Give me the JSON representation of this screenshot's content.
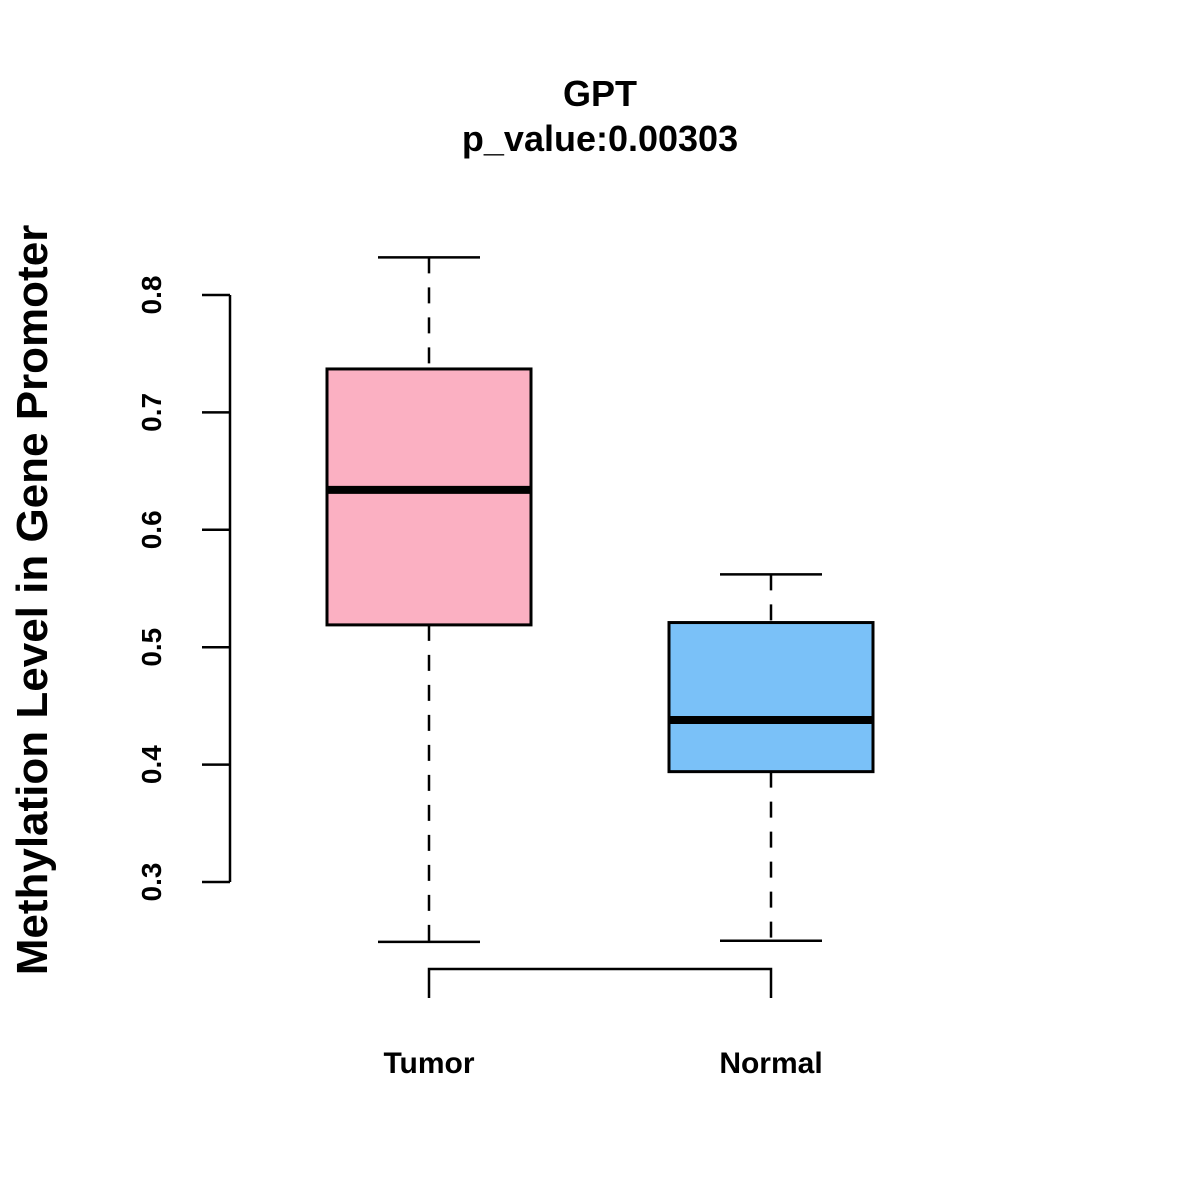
{
  "chart_data": {
    "type": "boxplot",
    "title": "GPT",
    "subtitle": "p_value:0.00303",
    "xlabel": "",
    "ylabel": "Methylation Level in Gene Promoter",
    "yticks": [
      "0.3",
      "0.4",
      "0.5",
      "0.6",
      "0.7",
      "0.8"
    ],
    "ytick_values": [
      0.3,
      0.4,
      0.5,
      0.6,
      0.7,
      0.8
    ],
    "categories": [
      "Tumor",
      "Normal"
    ],
    "series": [
      {
        "name": "Tumor",
        "color": "#FBB0C2",
        "min": 0.249,
        "q1": 0.519,
        "median": 0.634,
        "q3": 0.737,
        "max": 0.832
      },
      {
        "name": "Normal",
        "color": "#7AC1F8",
        "min": 0.25,
        "q1": 0.394,
        "median": 0.438,
        "q3": 0.521,
        "max": 0.562
      }
    ]
  }
}
